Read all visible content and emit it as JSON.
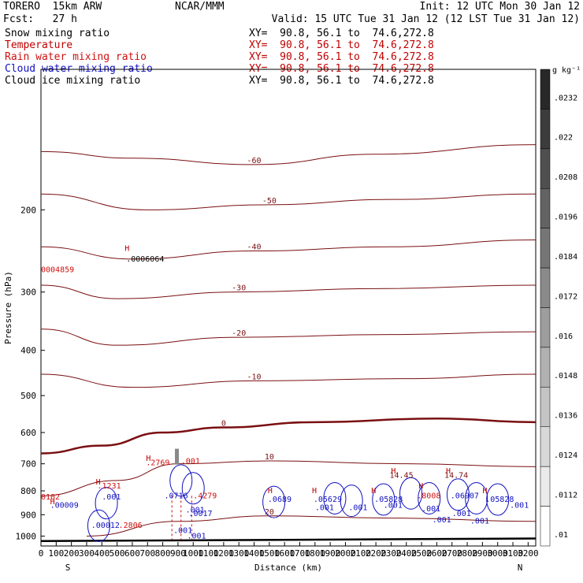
{
  "header": {
    "model": "TORERO  15km ARW",
    "center": "NCAR/MMM",
    "init": "Init: 12 UTC Mon 30 Jan 12",
    "fcst": "Fcst:   27 h",
    "valid": "Valid: 15 UTC Tue 31 Jan 12 (12 LST Tue 31 Jan 12)"
  },
  "legend": [
    {
      "name": "Snow mixing ratio",
      "color": "#000000",
      "xy": "XY=  90.8, 56.1 to  74.6,272.8"
    },
    {
      "name": "Temperature",
      "color": "#c00000",
      "xy": "XY=  90.8, 56.1 to  74.6,272.8"
    },
    {
      "name": "Rain water mixing ratio",
      "color": "#d01010",
      "xy": "XY=  90.8, 56.1 to  74.6,272.8"
    },
    {
      "name": "Cloud water mixing ratio",
      "color": "#1010c0",
      "xy": "XY=  90.8, 56.1 to  74.6,272.8"
    },
    {
      "name": "Cloud ice mixing ratio",
      "color": "#000000",
      "xy": "XY=  90.8, 56.1 to  74.6,272.8"
    }
  ],
  "chart_data": {
    "type": "cross-section contour",
    "xlabel": "Distance (km)",
    "ylabel": "Pressure (hPa)",
    "xlim": [
      0,
      3250
    ],
    "ylim": [
      1050,
      100
    ],
    "xticks": [
      0,
      100,
      200,
      300,
      400,
      500,
      600,
      700,
      800,
      900,
      1000,
      1100,
      1200,
      1300,
      1400,
      1500,
      1600,
      1700,
      1800,
      1900,
      2000,
      2100,
      2200,
      2300,
      2400,
      2500,
      2600,
      2700,
      2800,
      2900,
      3000,
      3100,
      3200
    ],
    "yticks": [
      200,
      300,
      400,
      500,
      600,
      700,
      800,
      900,
      1000
    ],
    "left_end": "S",
    "right_end": "N",
    "colorbar": {
      "unit": "g kg⁻¹",
      "ticks": [
        ".0232",
        ".022",
        ".0208",
        ".0196",
        ".0184",
        ".0172",
        ".016",
        ".0148",
        ".0136",
        ".0124",
        ".0112",
        ".01"
      ]
    },
    "temperature_contours": [
      {
        "label": "-60",
        "points": [
          [
            0,
            150
          ],
          [
            600,
            155
          ],
          [
            1400,
            160
          ],
          [
            2200,
            152
          ],
          [
            3250,
            145
          ]
        ]
      },
      {
        "label": "-50",
        "points": [
          [
            0,
            185
          ],
          [
            700,
            200
          ],
          [
            1500,
            195
          ],
          [
            2300,
            190
          ],
          [
            3250,
            185
          ]
        ]
      },
      {
        "label": "-40",
        "points": [
          [
            0,
            240
          ],
          [
            600,
            255
          ],
          [
            1400,
            245
          ],
          [
            2300,
            240
          ],
          [
            3250,
            232
          ]
        ]
      },
      {
        "label": "-30",
        "points": [
          [
            0,
            290
          ],
          [
            500,
            310
          ],
          [
            1300,
            300
          ],
          [
            2200,
            295
          ],
          [
            3250,
            290
          ]
        ]
      },
      {
        "label": "-20",
        "points": [
          [
            0,
            360
          ],
          [
            500,
            390
          ],
          [
            1300,
            375
          ],
          [
            2300,
            370
          ],
          [
            3250,
            365
          ]
        ]
      },
      {
        "label": "-10",
        "points": [
          [
            0,
            450
          ],
          [
            600,
            480
          ],
          [
            1400,
            465
          ],
          [
            2400,
            460
          ],
          [
            3250,
            450
          ]
        ]
      },
      {
        "label": "0",
        "points": [
          [
            0,
            665
          ],
          [
            400,
            640
          ],
          [
            800,
            600
          ],
          [
            1200,
            585
          ],
          [
            1800,
            570
          ],
          [
            2600,
            560
          ],
          [
            3250,
            570
          ]
        ]
      },
      {
        "label": "10",
        "points": [
          [
            0,
            820
          ],
          [
            500,
            760
          ],
          [
            900,
            700
          ],
          [
            1500,
            690
          ],
          [
            2400,
            700
          ],
          [
            3250,
            710
          ]
        ]
      },
      {
        "label": "20",
        "points": [
          [
            300,
            1000
          ],
          [
            900,
            930
          ],
          [
            1500,
            905
          ],
          [
            2300,
            915
          ],
          [
            3250,
            930
          ]
        ]
      }
    ],
    "labels_in_plot": [
      {
        "text": "H",
        "x": 550,
        "y": 245
      },
      {
        "text": ".0006064",
        "x": 560,
        "y": 258
      },
      {
        "text": "0004859",
        "x": 0,
        "y": 272
      },
      {
        "text": "H",
        "x": 690,
        "y": 690
      },
      {
        "text": ".2769",
        "x": 690,
        "y": 705
      },
      {
        "text": ".001",
        "x": 920,
        "y": 700
      },
      {
        "text": "H",
        "x": 360,
        "y": 775
      },
      {
        "text": ".1231",
        "x": 370,
        "y": 790
      },
      {
        "text": ".001",
        "x": 400,
        "y": 835
      },
      {
        "text": "0102",
        "x": 0,
        "y": 835
      },
      {
        "text": "H",
        "x": 60,
        "y": 855
      },
      {
        "text": ".00009",
        "x": 60,
        "y": 870
      },
      {
        "text": ".0716",
        "x": 810,
        "y": 830
      },
      {
        "text": ".4279",
        "x": 1000,
        "y": 830
      },
      {
        "text": ".001",
        "x": 950,
        "y": 890
      },
      {
        "text": ".0017",
        "x": 970,
        "y": 905
      },
      {
        "text": ".001",
        "x": 870,
        "y": 985
      },
      {
        "text": ".001",
        "x": 960,
        "y": 1012
      },
      {
        "text": ".00012",
        "x": 330,
        "y": 960
      },
      {
        "text": ".2806",
        "x": 510,
        "y": 960
      },
      {
        "text": "H",
        "x": 1490,
        "y": 810
      },
      {
        "text": ".0689",
        "x": 1490,
        "y": 845
      },
      {
        "text": "H",
        "x": 1780,
        "y": 810
      },
      {
        "text": ".05629",
        "x": 1790,
        "y": 845
      },
      {
        "text": ".001",
        "x": 1800,
        "y": 880
      },
      {
        "text": ".001",
        "x": 2020,
        "y": 880
      },
      {
        "text": "H",
        "x": 2170,
        "y": 810
      },
      {
        "text": ".05828",
        "x": 2190,
        "y": 845
      },
      {
        "text": ".001",
        "x": 2250,
        "y": 870
      },
      {
        "text": "H",
        "x": 2300,
        "y": 735
      },
      {
        "text": "14.45",
        "x": 2290,
        "y": 750
      },
      {
        "text": "H",
        "x": 2660,
        "y": 735
      },
      {
        "text": "14.74",
        "x": 2650,
        "y": 750
      },
      {
        "text": "H",
        "x": 2480,
        "y": 790
      },
      {
        "text": ".8008",
        "x": 2470,
        "y": 830
      },
      {
        "text": ".001",
        "x": 2500,
        "y": 885
      },
      {
        "text": ".001",
        "x": 2570,
        "y": 935
      },
      {
        "text": ".001",
        "x": 2700,
        "y": 905
      },
      {
        "text": ".06907",
        "x": 2690,
        "y": 830
      },
      {
        "text": "H",
        "x": 2900,
        "y": 810
      },
      {
        "text": ".05828",
        "x": 2920,
        "y": 845
      },
      {
        "text": ".001",
        "x": 3080,
        "y": 870
      },
      {
        "text": ".001",
        "x": 2820,
        "y": 940
      }
    ]
  }
}
